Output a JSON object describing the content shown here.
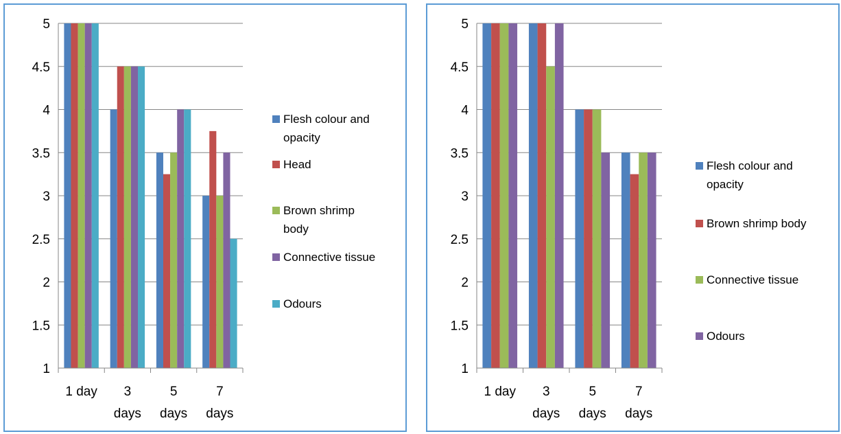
{
  "chart_data": [
    {
      "type": "bar",
      "categories": [
        [
          "1 day"
        ],
        [
          "3",
          "days"
        ],
        [
          "5",
          "days"
        ],
        [
          "7",
          "days"
        ]
      ],
      "ylim": [
        1,
        5
      ],
      "yticks": [
        "5",
        "4.5",
        "4",
        "3.5",
        "3",
        "2.5",
        "2",
        "1.5",
        "1"
      ],
      "grid": true,
      "legend_position": "right",
      "series": [
        {
          "name": [
            "Flesh colour and",
            "opacity"
          ],
          "color": "#4f81bd",
          "values": [
            5,
            4,
            3.5,
            3
          ]
        },
        {
          "name": [
            "Head"
          ],
          "color": "#c0504d",
          "values": [
            5,
            4.5,
            3.25,
            3.75
          ]
        },
        {
          "name": [
            "Brown shrimp",
            "body"
          ],
          "color": "#9bbb59",
          "values": [
            5,
            4.5,
            3.5,
            3
          ]
        },
        {
          "name": [
            "Connective tissue"
          ],
          "color": "#8064a2",
          "values": [
            5,
            4.5,
            4,
            3.5
          ]
        },
        {
          "name": [
            "Odours"
          ],
          "color": "#4bacc6",
          "values": [
            5,
            4.5,
            4,
            2.5
          ]
        }
      ]
    },
    {
      "type": "bar",
      "categories": [
        [
          "1 day"
        ],
        [
          "3",
          "days"
        ],
        [
          "5",
          "days"
        ],
        [
          "7",
          "days"
        ]
      ],
      "ylim": [
        1,
        5
      ],
      "yticks": [
        "5",
        "4.5",
        "4",
        "3.5",
        "3",
        "2.5",
        "2",
        "1.5",
        "1"
      ],
      "grid": true,
      "legend_position": "right",
      "series": [
        {
          "name": [
            "Flesh colour and",
            "opacity"
          ],
          "color": "#4f81bd",
          "values": [
            5,
            5,
            4,
            3.5
          ]
        },
        {
          "name": [
            "Brown shrimp body"
          ],
          "color": "#c0504d",
          "values": [
            5,
            5,
            4,
            3.25
          ]
        },
        {
          "name": [
            "Connective tissue"
          ],
          "color": "#9bbb59",
          "values": [
            5,
            4.5,
            4,
            3.5
          ]
        },
        {
          "name": [
            "Odours"
          ],
          "color": "#8064a2",
          "values": [
            5,
            5,
            3.5,
            3.5
          ]
        }
      ]
    }
  ]
}
